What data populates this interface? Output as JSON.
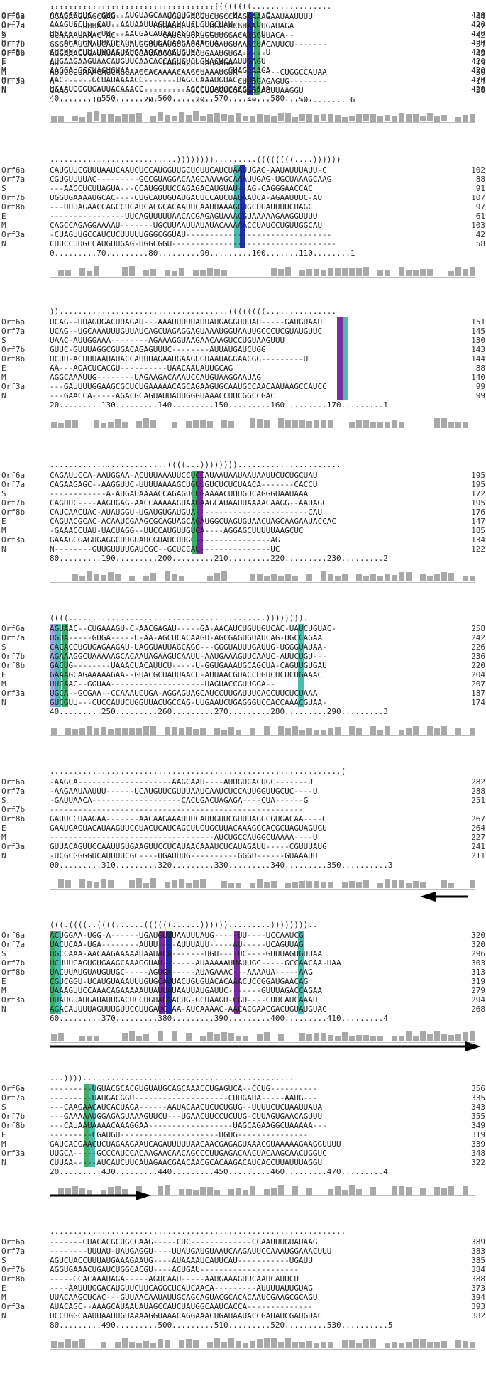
{
  "labels": [
    "Orf6a",
    "Orf7a",
    "S",
    "Orf7b",
    "Orf8b",
    "E",
    "M",
    "Orf3a",
    "N"
  ],
  "colors": {
    "dark_blue": "#1f2fa8",
    "green": "#3dae6a",
    "teal": "#4dbcb0",
    "purple": "#7b2aa0",
    "light_blue": "#9fa8dc",
    "gray": "#a9a9a9"
  },
  "blocks": [
    {
      "structure": "...................................((((((((.................",
      "rows": [
        {
          "seq": "UCACAAGUAGCGAG-----------UGUU-AUCUCUGCCAAGAAAAGAAUAAUUUU",
          "end": "44"
        },
        {
          "seq": "-----AGUUUA-----------CGGAGACUAUUCUGGCACGUAACUGAUAGA",
          "end": "37"
        },
        {
          "seq": "GCAAAAUAAAC-AC----------CAUCAUUAUGGUUGGACAGGGUUACA--",
          "end": "42"
        },
        {
          "seq": "GGGUCAUCAAUCAUCAUAUGGUUGAUGUGAUGACUGAUGUAAACUACAUUCU-------",
          "end": "54"
        },
        {
          "seq": "AGGAAACUGAUAUAAUACCGAUAUCGAUGUACUGAAUGUGA-----",
          "end": "43"
        },
        {
          "seq": "AU----------------------CAGGACUCUAGAAGA---",
          "end": "19"
        },
        {
          "seq": "AUUCUGUAAACAGCAGCAAGCACAAAACAAGCUAAAUGUA---------CUGGCCAUAA",
          "end": "50"
        },
        {
          "seq": "A---------------------------------------CUUGGAGAGUG--------",
          "end": "14"
        },
        {
          "seq": "GAAC--------------------------GCCUUCCUCGAGGGAAUUUAAGGU",
          "end": "30"
        }
      ],
      "ruler": ".........10.........20.........30.........40.........50.........6"
    },
    {
      "structure": "...........................)))))))).........((((((((....))))))",
      "rows": [
        {
          "seq": "CAUGUUCGUUUAAUCAAUCUCCAUGGUUGCUCUUCAUCUAAUUGAG-AAUAUUUAUU-C",
          "end": "102"
        },
        {
          "seq": "CGUGUUUUAC---------GCCGUAGGACAAGCAAAAGCAAAUUGAG-UGCUAAAGCAAG",
          "end": "88"
        },
        {
          "seq": "---AACCUCUUAGUA---CCAUGGUUCCAGAGACAUGUAU--AG-CAGGGAACCAC",
          "end": "91"
        },
        {
          "seq": "UGGUGAAAAUGCAC----CUGCAUUGUAUGAUUCCAUCUAUAAUCA-AGAAUUUC-AU",
          "end": "107"
        },
        {
          "seq": "---UUUAGAACCAGCCUCAUCACGCACAAUUCAAUUAAAGGUGCUGAUUUUCUAGC",
          "end": "97"
        },
        {
          "seq": "----------------UUCAGUUUUUAACACGAGAGUAAACGUAAAAAGAAGGUUUU",
          "end": "61"
        },
        {
          "seq": "CAGCCAGAGGAAAAU-------UGCUUAAUUAUAUACAAAAACCUAUCCUGUUGGCAU",
          "end": "103"
        },
        {
          "seq": "-CUAGUUGCCAUCUCUUUUUGGGCGGUAU-------------------------------",
          "end": "42"
        },
        {
          "seq": "CUUCCUUGCCAUGUUGAG-UGGCGGU-----------------------------------",
          "end": "58"
        }
      ],
      "ruler": "0.........70.........80.........90.........100.......110........1"
    },
    {
      "structure": "))....................................((((((((...............",
      "rows": [
        {
          "seq": "UCAG--UUAGUGACUUAGAU---AAAUUUUUAUUAUGAGGUUUAU-----GAUGUAAU",
          "end": "151"
        },
        {
          "seq": "UCAG--UGCAAAUUUGUUAUCAGCUAGAGGAGUAAAUGGUAAUUGCCCUCGUAUGUUC",
          "end": "145"
        },
        {
          "seq": "UAAC-AUUGGAAA--------AGAAAGGUAAGAACAAGUCCUGUAAGUUU",
          "end": "130"
        },
        {
          "seq": "GUUC-GUUUAGGCGUGACAGAGUUUC--------AUUAUGAUCUGG",
          "end": "143"
        },
        {
          "seq": "UCUU-ACUUUAAUAUACCAUUUAGAAUGAAGUGUAAUAGGAACGG---------U",
          "end": "144"
        },
        {
          "seq": "AA---AGACUCACGU----------UAACAAUAUUGCAG",
          "end": "88"
        },
        {
          "seq": "AGGCAAAUUG--------UAGAAGACAAAUCCAUGUAAGGAAUAG",
          "end": "140"
        },
        {
          "seq": "---GAUUUUGGAAGCGCUCUGAAAAACAGCAGAAGUGCAAUGCCAACAAUAAGCCAUCC",
          "end": "99"
        },
        {
          "seq": "---GAACCA-----AGACGCAGUAUUAUUGGGUAAACCUUCGGCCGAC",
          "end": "99"
        }
      ],
      "ruler": "20.........130.........140.........150.........160.........170.........1"
    },
    {
      "structure": ".........................((((...))))))))......................",
      "rows": [
        {
          "seq": "CAGAUUCCA-AAUGGAA-ACUUUAAAUUCCUCCAUAAUAAUAAUAAUUCUCUGCUAU",
          "end": "195"
        },
        {
          "seq": "CAGAAGAGC--AAGGUUC-UUUUAAAAGCUGUUGUCUCUCUAACA-------CACCU",
          "end": "195"
        },
        {
          "seq": "------------A-AUGAUAAAACCAGAGUCUGAAAACUUUGUCAGGGUAAUAAA",
          "end": "172"
        },
        {
          "seq": "CAGUUC----AAGUGAG-AACCAAAAAGUAAUAAGCAUAAUUAAAACAAGG--AAUAGC",
          "end": "195"
        },
        {
          "seq": "CAUCAACUAC-AUAUGGU-UGAUGUGAUGUA------------------------CAU",
          "end": "176"
        },
        {
          "seq": "CAGUACGCAC-ACAAUCGAAGCGCAGUAGCAGAUGGCUAGUGUAACUAGCAAGAAUACCAC",
          "end": "147"
        },
        {
          "seq": "-GAAACCUAU-UACUAGG--UUCCAUGUUGUCA----AGGAGCUUUUUAAGCUC",
          "end": "185"
        },
        {
          "seq": "GAAAGGGAGUGAGGCUUGUAUCGUAUCUUGC----------------AG",
          "end": "134"
        },
        {
          "seq": "N--------GUUGUUUUGAUCGC--GCUCCAU---------------UC",
          "end": "122"
        }
      ],
      "ruler": "80.........190.........200.........210.........220.........230.........2"
    },
    {
      "structure": "((((..........................................)))))))).",
      "rows": [
        {
          "seq": "AGUAAC--CUGAAAGU-C-AACGAGAU-----GA-AACAUCUGUUGUCAC-UAUCUGUAC-",
          "end": "258"
        },
        {
          "seq": "UGUA-----GUGA-----U-AA-AGCUCACAAGU-AGCGAGUGUAUCAG-UGCCAGAA",
          "end": "242"
        },
        {
          "seq": "CACACGUGUGAGAAGAU-UAGGUAUUAGCAGG---GGGUAUUUGAUUG-UGGGUAUAA-",
          "end": "226"
        },
        {
          "seq": "AGAAAGGCUAAAAAGCACAAUAGAAGUCAAUU-AAUGAAAGUUCAAUC-AUUCUGU---",
          "end": "236"
        },
        {
          "seq": "GACUG--------UAAACUACAUUCU-----U-GGUGAAAUGCAGCUA-CAGUUGUGAU",
          "end": "220"
        },
        {
          "seq": "GAAAGCAGAAAAAGAA--GUACGCUAUUAACU-AUUAACGUACCUGUCUCUCUGAAAC",
          "end": "204"
        },
        {
          "seq": "UUCAAC--GGUAA--------------------UAGUACCGUUGGA--",
          "end": "207"
        },
        {
          "seq": "UGCA--GCGAA--CCAAAUCUGA-AGGAGUAGCAUCCUUGAUUUCACCUUCUCUAAA",
          "end": "187"
        },
        {
          "seq": "GUCGUU---CUCCAUUCUGGUUACUGCCAG-UUGAAUCUGAGGGUCCACCAAACGUAA-",
          "end": "174"
        }
      ],
      "ruler": "40.........250.........260.........270.........280.........290.........3"
    },
    {
      "structure": "..............................................................(",
      "rows": [
        {
          "seq": "-AAGCA--------------------AAGCAAU----AUUGUCACUGC-------U",
          "end": "282"
        },
        {
          "seq": "-AAGAAUAAUUU------UCAUGUUCGUUUAAUCAAUCUCCAUUGGUUGCUC----U",
          "end": "288"
        },
        {
          "seq": "-GAUUAACA-------------------CACUGACUAGAGA----CUA------G",
          "end": "251"
        },
        {
          "seq": "------------------------------------------------------",
          "end": ""
        },
        {
          "seq": "GAUUCCUAAGAA-------AACAAGAAAUUUCAUUGUUCGUUUAGGCGUGACAA----G",
          "end": "267"
        },
        {
          "seq": "GAAUGAGUACAUAAGUUCGUACUCAUCAGCUUGUGCUUACAAAGGCACGCUAGUAGUGU",
          "end": "264"
        },
        {
          "seq": "-----------------------------------AUCUGCCAUGGCUAAAA----U",
          "end": "227"
        },
        {
          "seq": "GUUACAGUUCCAAUUGUGAAGUUCCUCAUAACAAAUCUCAUAGAUU-----CGUUUAUG",
          "end": "241"
        },
        {
          "seq": "-UCGCGGGGUCAUUUUCGC----UGAUUUG----------GGGU------GUAAAUU",
          "end": "211"
        }
      ],
      "ruler": "00.........310.........320.........330.........340.........350..........3"
    },
    {
      "structure": "(((.((((..((((......((((((......)))))).........))))))))..",
      "rows": [
        {
          "seq": "ACUGGAA-UGG-A------UGAUGUUUAAUUUAUG-----UU----UCCAAUCG",
          "end": "320"
        },
        {
          "seq": "UACUCAA-UGA--------AUUU----AUUUAUU-----AU-----UCAGUUAG",
          "end": "320"
        },
        {
          "seq": "UGCCAAA-AACAAGAAAAAUAAUACA-------UGU----UC----GUUUAGUGUUAA",
          "end": "296"
        },
        {
          "seq": "UCUUUGAGUGUGAAGCAAAGGUAU-------AUAAAAAUUAUUGC-----GCCAACAA-UAA",
          "end": "303"
        },
        {
          "seq": "UACUUAUGUAUGUUGC-----AGUGA-----AUAGAAAC---AAAAUA-----AAG",
          "end": "313"
        },
        {
          "seq": "CGUCGGU-UCAUGUAAAUUUGUGCAUUACUGUGUACACAAACUCCGGAUGAACAG",
          "end": "319"
        },
        {
          "seq": "UAAAGUUCCAAACAGAAAAAUUAUUAUAAUUAUGAUUC-------GUUUAGACCAGAA",
          "end": "279"
        },
        {
          "seq": "UUAUGUAUGAUAUUGACUCCUGUAGCACUG-GCUAAGU-CGU----CUUCAUCAAAU",
          "end": "294"
        },
        {
          "seq": "AGACAUUUUAGUUUGUUCGUUGAUG-AA-AUCAAAAC-AACACGAACGACUGUAUGUAC",
          "end": "268"
        }
      ],
      "ruler": "60.........370.........380.........390.........400.........410.........4"
    },
    {
      "structure": "...)))).............................................",
      "rows": [
        {
          "seq": "---------UGUACGCACGUGUAUGCAGCAAACCUGAGUCA--CCUG----------",
          "end": "356"
        },
        {
          "seq": "---------UAUGACGGU--------------------CUUGAUA-----AAUG---",
          "end": "335"
        },
        {
          "seq": "---CAAGAACAUCACUAGA------AAUACAACUCUCUGUG--UUUUCUCUAAUUAUA",
          "end": "343"
        },
        {
          "seq": "---GAAAAAUGGAGAGUAAAGUUCU---UGAACUUCCUCUUG-CUUAGUGAACAGUUU",
          "end": "355"
        },
        {
          "seq": "---CAUAAUAAAACAAAGGAA------------------UAGCAGAAGGCUAAAAA---",
          "end": "349"
        },
        {
          "seq": "---------CGAUGU---------------------UGUG---------------",
          "end": "319"
        },
        {
          "seq": "GAUCAGGAACUCUAGAAGAAUCAGAUUUUUAACAACGAGAGUAAACGUAAAAAGAAGGUUUU",
          "end": "339"
        },
        {
          "seq": "UUGCA-----GCCCAUCCACAAGAACAACAGCCCUUGAGACAACUACAAGCAACUGGUC",
          "end": "348"
        },
        {
          "seq": "CUUAA-----AUCAUCUUCAUAGAACGAACAACGCACAAGACAUCACCUUAUUUAGGU",
          "end": "322"
        }
      ],
      "ruler": "20.........430.........440.........450.........460.........470.........4"
    },
    {
      "structure": "...............................................................",
      "rows": [
        {
          "seq": "-------CUACACGCUGCGAAG-----CUC-------------CCAAUUUGUAUAAG",
          "end": "389"
        },
        {
          "seq": "--------UUUAU-UAUGAGGU----UUAUGAUGUAAUCAAGAUUCCAAAUGGAAACUUU",
          "end": "383"
        },
        {
          "seq": "AGUCUACCUUUAUGAAAGAAUG----AUAAAAUCAUUCAU-----------UGAUU",
          "end": "385"
        },
        {
          "seq": "AGGUGAAACUGAUCUGGCACGU----ACUGAU---------------------",
          "end": "384"
        },
        {
          "seq": "-----GCACAAAUAGA-----AGUCAAU-----AAUGAAAGUUCAAUCAUUCU",
          "end": "388"
        },
        {
          "seq": "----AAUUUGGACAUGUUCUUCAGGCUCAUCAACA---------AUUUUAUUGUAG",
          "end": "373"
        },
        {
          "seq": "UUACAAGCUCAC---GUUAACAAUAUUGCAGCAGUACGCACACAAUCGAAGCGCAGU",
          "end": "394"
        },
        {
          "seq": "AUACAGC--AAAGCAUAAUAUAGCCAUCUAUGGCAAUCACCA--------------",
          "end": "393"
        },
        {
          "seq": "UCCUGGCAAUUAAUUGUAAAAGGUAAACAGGAAACUGAUAAUACCGAUAUCGAUGUAC",
          "end": "382"
        }
      ],
      "ruler": "80.........490.........500.........510.........520.........530..........5"
    },
    {
      "structure": "..........................................",
      "rows": [
        {
          "seq": "AAAGCGUUC--GUG--AUGUAGCAACAGUGUAU------U------C",
          "end": "420"
        },
        {
          "seq": "AAAGUCCU--CAU--AAUAAUUAGUAAUAUCUCUGCUAU-----U",
          "end": "420"
        },
        {
          "seq": "UGACCUUCU--UU---AAUGACAUAACAGCAUCCC----------U",
          "end": "420"
        },
        {
          "seq": "---AGACGU-UUCGCCCGUGCAGGACAAGAAAAGCA---------A",
          "end": "420"
        },
        {
          "seq": "GUCUUUCUU-UUGAGUGUGAAGCAAAGUGUUA--------------U",
          "end": "420"
        },
        {
          "seq": "AUGAAGAAGUAACAUGUUCAACACCAGUGUCUGUACUCAAUUGAGU",
          "end": "420"
        },
        {
          "seq": "AAGGAUGGCUAGUGUAA---------------------CUAGCAAGA",
          "end": "420"
        },
        {
          "seq": "AAC------GCUAUAAAACC-------UAGCCAAAUGUAC--CAU",
          "end": "420"
        },
        {
          "seq": "UGAAUGGGUGAUUACAAACC---------AGCCUCAUCCACGCACAA",
          "end": "420"
        }
      ],
      "ruler": "40.........550.........560.........570.........580......"
    }
  ]
}
